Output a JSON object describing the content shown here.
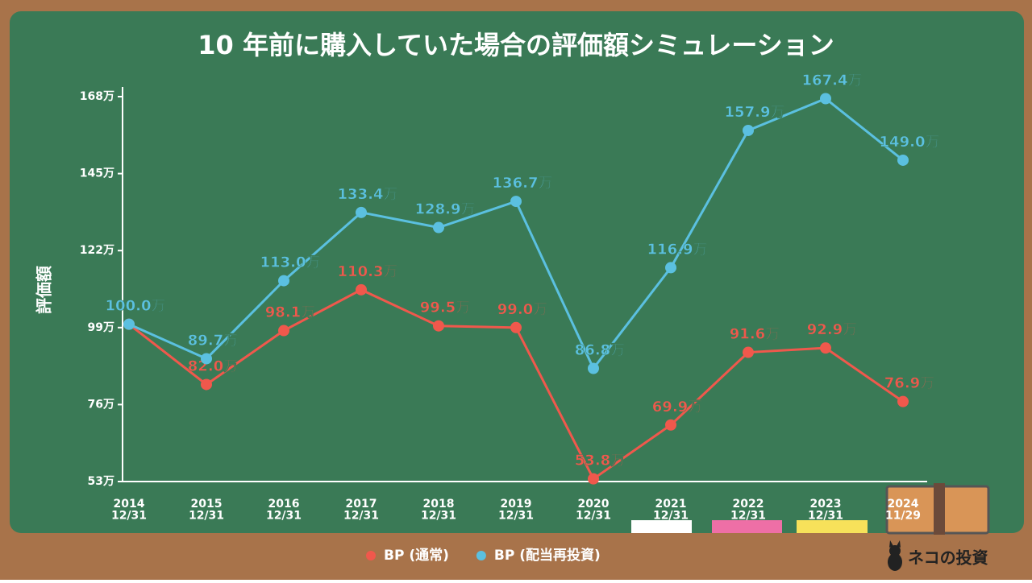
{
  "chart_data": {
    "type": "line",
    "title": "10 年前に購入していた場合の評価額シミュレーション",
    "y_label": "評価額",
    "categories": [
      "2014\n12/31",
      "2015\n12/31",
      "2016\n12/31",
      "2017\n12/31",
      "2018\n12/31",
      "2019\n12/31",
      "2020\n12/31",
      "2021\n12/31",
      "2022\n12/31",
      "2023\n12/31",
      "2024\n11/29"
    ],
    "series": [
      {
        "name": "BP (通常)",
        "color": "#f0584c",
        "values": [
          100.0,
          82.0,
          98.1,
          110.3,
          99.5,
          99.0,
          53.8,
          69.9,
          91.6,
          92.9,
          76.9
        ],
        "value_labels": [
          null,
          "82.0万",
          "98.1万",
          "110.3万",
          "99.5万",
          "99.0万",
          "53.8万",
          "69.9万",
          "91.6万",
          "92.9万",
          "76.9万"
        ]
      },
      {
        "name": "BP (配当再投資)",
        "color": "#5bc0e0",
        "values": [
          100.0,
          89.7,
          113.0,
          133.4,
          128.9,
          136.7,
          86.8,
          116.9,
          157.9,
          167.4,
          149.0
        ],
        "value_labels": [
          "100.0万",
          "89.7万",
          "113.0万",
          "133.4万",
          "128.9万",
          "136.7万",
          "86.8万",
          "116.9万",
          "157.9万",
          "167.4万",
          "149.0万"
        ]
      }
    ],
    "ylim": [
      53,
      168
    ],
    "yticks": [
      {
        "value": 53,
        "label": "53万"
      },
      {
        "value": 76,
        "label": "76万"
      },
      {
        "value": 99,
        "label": "99万"
      },
      {
        "value": 122,
        "label": "122万"
      },
      {
        "value": 145,
        "label": "145万"
      },
      {
        "value": 168,
        "label": "168万"
      }
    ],
    "legend": "bottom",
    "brand": "ネコの投資"
  }
}
